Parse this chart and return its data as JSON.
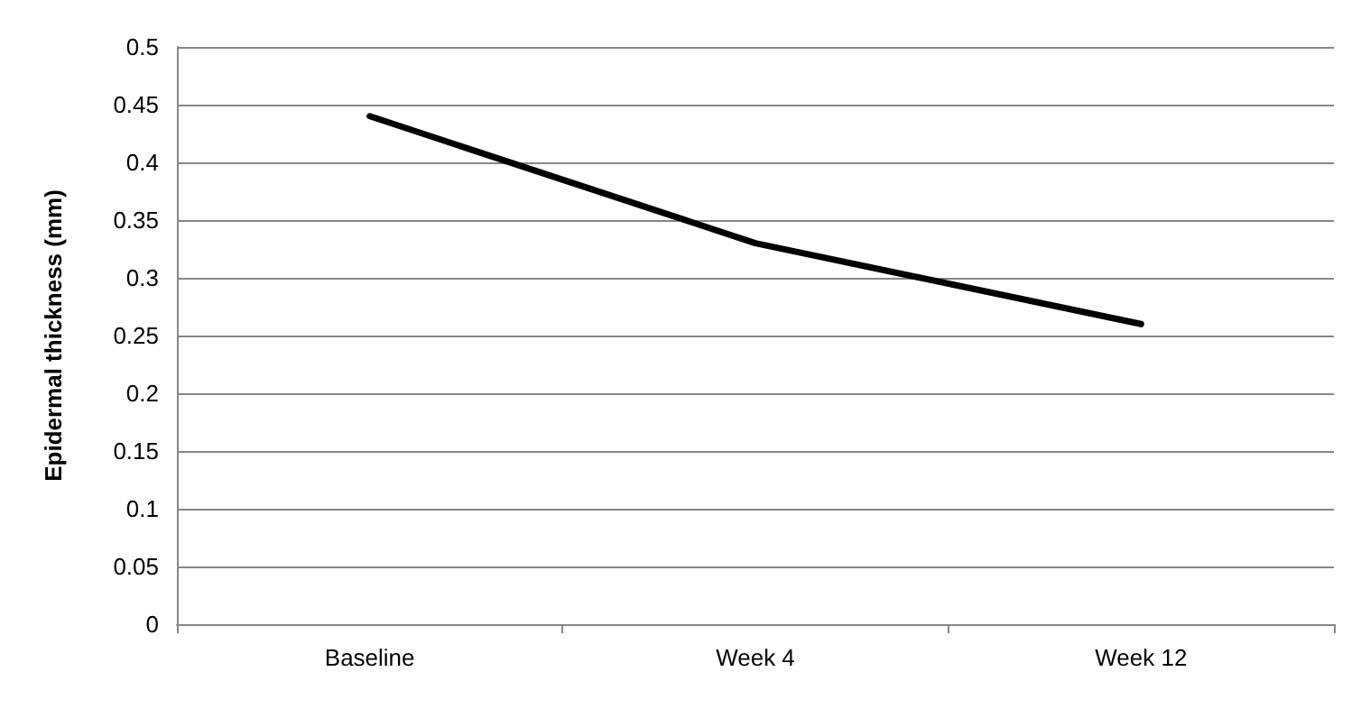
{
  "chart_data": {
    "type": "line",
    "ylabel": "Epidermal thickness (mm)",
    "categories": [
      "Baseline",
      "Week 4",
      "Week 12"
    ],
    "series": [
      {
        "color": "#000000",
        "values": [
          0.44,
          0.33,
          0.26
        ]
      }
    ],
    "ylim": [
      0,
      0.5
    ],
    "yticks": [
      0,
      0.05,
      0.1,
      0.15,
      0.2,
      0.25,
      0.3,
      0.35,
      0.4,
      0.45,
      0.5
    ],
    "grid": "y",
    "marker": "none",
    "line_style": "solid"
  }
}
